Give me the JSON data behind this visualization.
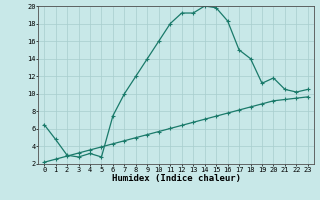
{
  "xlabel": "Humidex (Indice chaleur)",
  "bg_color": "#c8e8e8",
  "grid_color": "#a8cece",
  "line_color": "#1a7a6a",
  "curve1_x": [
    0,
    1,
    2,
    3,
    4,
    5,
    6,
    7,
    8,
    9,
    10,
    11,
    12,
    13,
    14,
    15,
    16,
    17,
    18,
    19,
    20,
    21,
    22,
    23
  ],
  "curve1_y": [
    6.5,
    4.8,
    3.0,
    2.8,
    3.2,
    2.8,
    7.5,
    10.0,
    12.0,
    14.0,
    16.0,
    18.0,
    19.2,
    19.2,
    20.0,
    19.8,
    18.3,
    15.0,
    14.0,
    11.2,
    11.8,
    10.5,
    10.2,
    10.5
  ],
  "curve2_x": [
    0,
    1,
    2,
    3,
    4,
    5,
    6,
    7,
    8,
    9,
    10,
    11,
    12,
    13,
    14,
    15,
    16,
    17,
    18,
    19,
    20,
    21,
    22,
    23
  ],
  "curve2_y": [
    2.2,
    2.55,
    2.9,
    3.25,
    3.6,
    3.95,
    4.3,
    4.65,
    5.0,
    5.35,
    5.7,
    6.05,
    6.4,
    6.75,
    7.1,
    7.45,
    7.8,
    8.15,
    8.5,
    8.85,
    9.2,
    9.35,
    9.5,
    9.65
  ],
  "xlim": [
    -0.5,
    23.5
  ],
  "ylim": [
    2,
    20
  ],
  "xticks": [
    0,
    1,
    2,
    3,
    4,
    5,
    6,
    7,
    8,
    9,
    10,
    11,
    12,
    13,
    14,
    15,
    16,
    17,
    18,
    19,
    20,
    21,
    22,
    23
  ],
  "yticks": [
    2,
    4,
    6,
    8,
    10,
    12,
    14,
    16,
    18,
    20
  ],
  "tick_fontsize": 5,
  "xlabel_fontsize": 6.5
}
